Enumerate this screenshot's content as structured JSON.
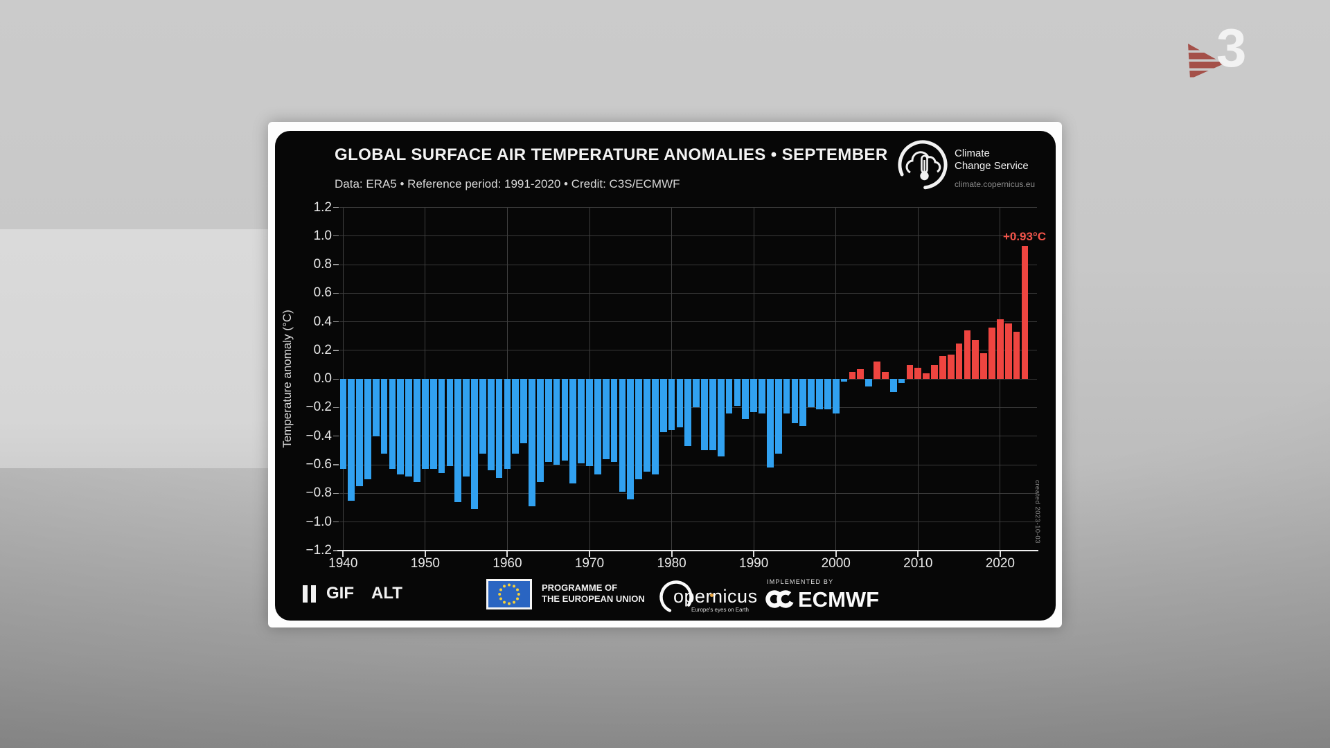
{
  "channel_bug": {
    "number": "3"
  },
  "header": {
    "title": "GLOBAL SURFACE AIR TEMPERATURE ANOMALIES • SEPTEMBER",
    "subtitle": "Data: ERA5 • Reference period: 1991-2020 • Credit: C3S/ECMWF",
    "logo": {
      "name_line1": "Climate",
      "name_line2": "Change Service",
      "website": "climate.copernicus.eu"
    }
  },
  "chart_data": {
    "type": "bar",
    "title": "Global surface air temperature anomalies • September",
    "ylabel": "Temperature anomaly (°C)",
    "ylim": [
      -1.2,
      1.2
    ],
    "ytick_step": 0.2,
    "yticks": [
      "1.2",
      "1.0",
      "0.8",
      "0.6",
      "0.4",
      "0.2",
      "0.0",
      "−0.2",
      "−0.4",
      "−0.6",
      "−0.8",
      "−1.0",
      "−1.2"
    ],
    "xticks": [
      1940,
      1950,
      1960,
      1970,
      1980,
      1990,
      2000,
      2010,
      2020
    ],
    "x_start": 1940,
    "x_end": 2023,
    "grid": true,
    "values": [
      -0.63,
      -0.85,
      -0.75,
      -0.7,
      -0.4,
      -0.52,
      -0.63,
      -0.67,
      -0.68,
      -0.72,
      -0.63,
      -0.63,
      -0.66,
      -0.61,
      -0.86,
      -0.68,
      -0.91,
      -0.52,
      -0.64,
      -0.69,
      -0.63,
      -0.52,
      -0.45,
      -0.89,
      -0.72,
      -0.58,
      -0.6,
      -0.57,
      -0.73,
      -0.59,
      -0.61,
      -0.67,
      -0.56,
      -0.58,
      -0.79,
      -0.84,
      -0.7,
      -0.65,
      -0.67,
      -0.37,
      -0.36,
      -0.34,
      -0.47,
      -0.2,
      -0.5,
      -0.5,
      -0.54,
      -0.24,
      -0.19,
      -0.28,
      -0.23,
      -0.24,
      -0.62,
      -0.52,
      -0.24,
      -0.31,
      -0.33,
      -0.2,
      -0.21,
      -0.21,
      -0.24,
      -0.02,
      0.05,
      0.07,
      -0.05,
      0.12,
      0.05,
      -0.09,
      -0.03,
      0.1,
      0.08,
      0.04,
      0.1,
      0.16,
      0.17,
      0.25,
      0.34,
      0.27,
      0.18,
      0.36,
      0.42,
      0.39,
      0.33,
      0.93
    ],
    "colors": {
      "positive": "#ee4540",
      "negative": "#31a1f0"
    },
    "annotation": {
      "text": "+0.93°C",
      "year": 2023
    },
    "created_label": "created 2023-10-03"
  },
  "footer": {
    "gif_label": "GIF",
    "alt_label": "ALT",
    "eu": {
      "line1": "PROGRAMME OF",
      "line2": "THE EUROPEAN UNION"
    },
    "copernicus": {
      "wordmark": "opernicus",
      "tagline": "Europe's eyes on Earth"
    },
    "ecmwf": {
      "implemented_by": "IMPLEMENTED BY",
      "wordmark": "ECMWF"
    }
  }
}
